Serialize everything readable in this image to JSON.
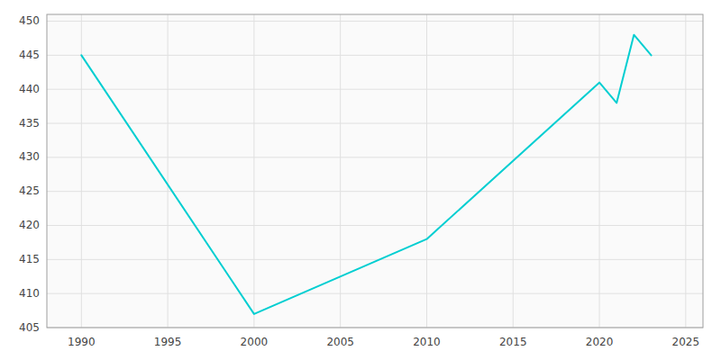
{
  "chart_data": {
    "type": "line",
    "x": [
      1990,
      2000,
      2010,
      2020,
      2021,
      2022,
      2023
    ],
    "values": [
      445,
      407,
      418,
      441,
      438,
      448,
      445
    ],
    "color": "#00CED1",
    "xlim": [
      1988,
      2026
    ],
    "ylim": [
      405,
      451
    ],
    "xticks": [
      1990,
      1995,
      2000,
      2005,
      2010,
      2015,
      2020,
      2025
    ],
    "yticks": [
      405,
      410,
      415,
      420,
      425,
      430,
      435,
      440,
      445,
      450
    ],
    "grid": true
  }
}
